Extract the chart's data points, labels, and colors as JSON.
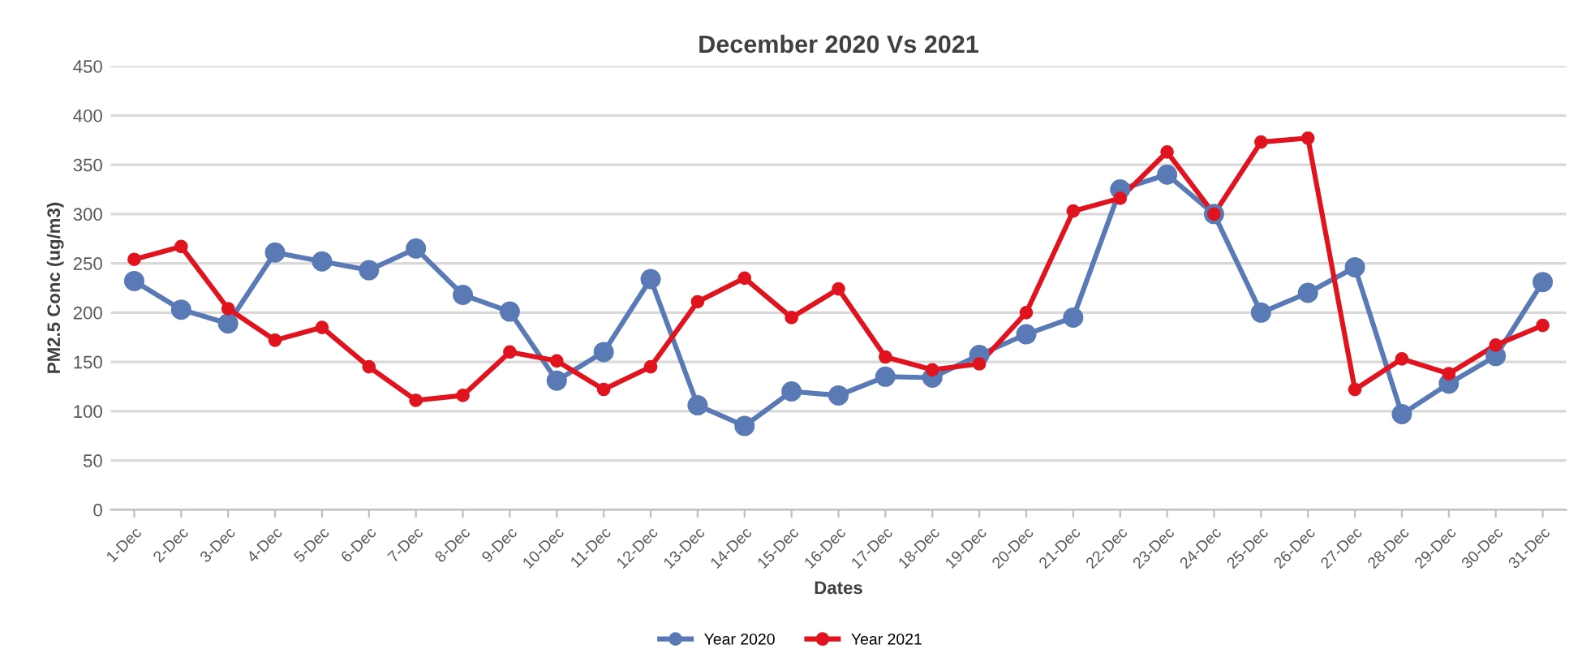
{
  "chart_data": {
    "type": "line",
    "title": "December 2020 Vs 2021",
    "xlabel": "Dates",
    "ylabel": "PM2.5 Conc (ug/m3)",
    "categories": [
      "1-Dec",
      "2-Dec",
      "3-Dec",
      "4-Dec",
      "5-Dec",
      "6-Dec",
      "7-Dec",
      "8-Dec",
      "9-Dec",
      "10-Dec",
      "11-Dec",
      "12-Dec",
      "13-Dec",
      "14-Dec",
      "15-Dec",
      "16-Dec",
      "17-Dec",
      "18-Dec",
      "19-Dec",
      "20-Dec",
      "21-Dec",
      "22-Dec",
      "23-Dec",
      "24-Dec",
      "25-Dec",
      "26-Dec",
      "27-Dec",
      "28-Dec",
      "29-Dec",
      "30-Dec",
      "31-Dec"
    ],
    "series": [
      {
        "name": "Year 2020",
        "color": "#5a7ab5",
        "values": [
          232,
          203,
          189,
          261,
          252,
          243,
          265,
          218,
          201,
          131,
          160,
          234,
          106,
          85,
          120,
          116,
          135,
          134,
          157,
          178,
          195,
          325,
          340,
          300,
          200,
          220,
          246,
          97,
          128,
          156,
          231
        ]
      },
      {
        "name": "Year 2021",
        "color": "#e0141e",
        "values": [
          254,
          267,
          204,
          172,
          185,
          145,
          111,
          116,
          160,
          151,
          122,
          145,
          211,
          235,
          195,
          224,
          155,
          142,
          148,
          200,
          303,
          316,
          363,
          300,
          373,
          377,
          122,
          153,
          138,
          167,
          187
        ]
      }
    ],
    "ylim": [
      0,
      450
    ],
    "yticks": [
      0,
      50,
      100,
      150,
      200,
      250,
      300,
      350,
      400,
      450
    ],
    "grid": "y",
    "legend": "bottom",
    "marker": "circle",
    "line_style": "solid"
  }
}
